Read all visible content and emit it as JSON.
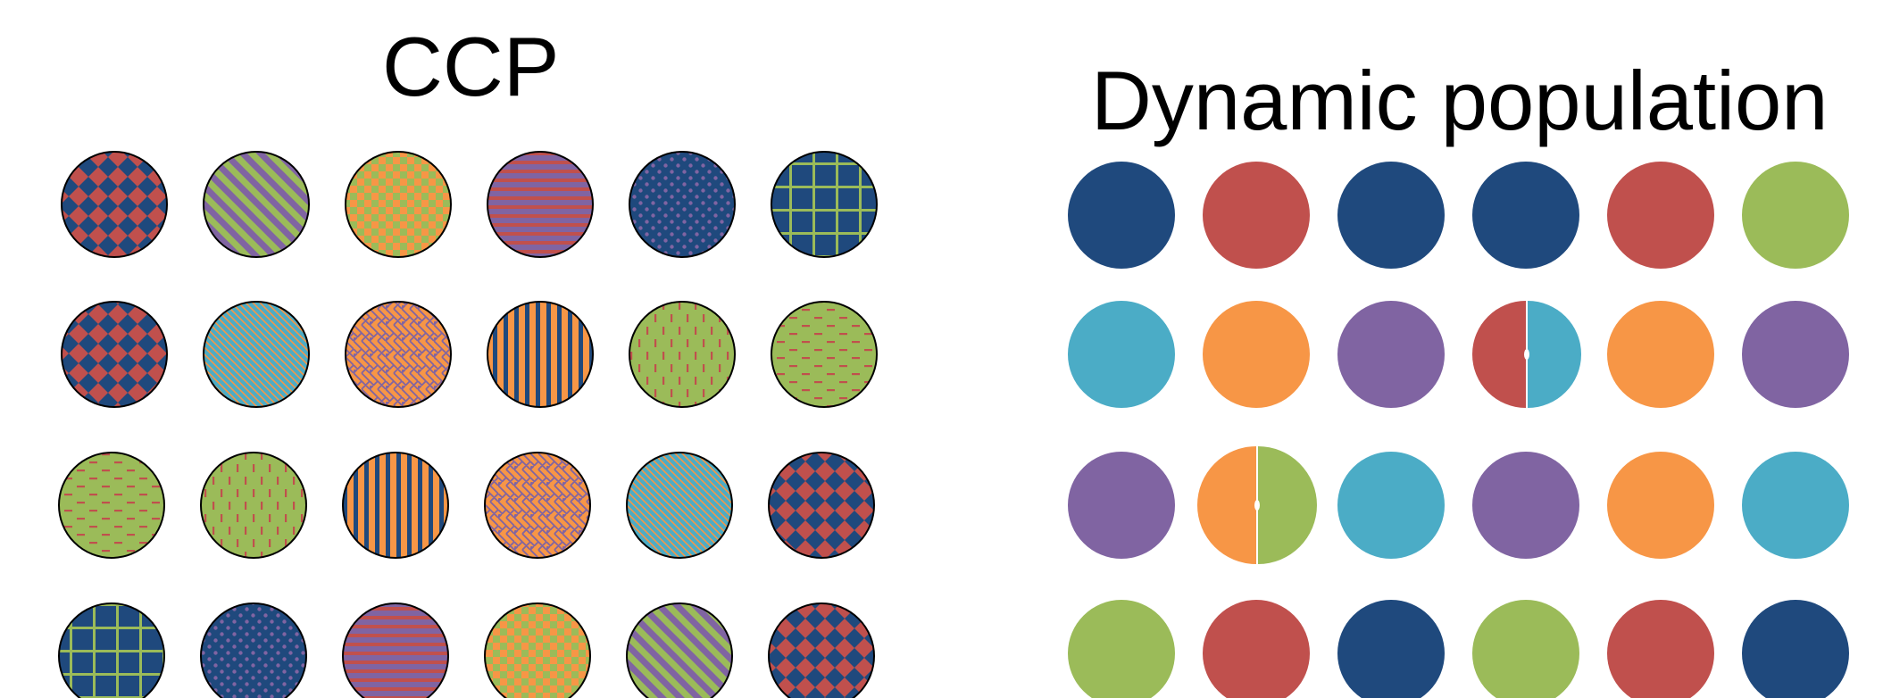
{
  "left_panel": {
    "title": "CCP",
    "patterns": {
      "diamond": {
        "bg": "#C0504D",
        "fg": "#1F497D"
      },
      "diag_purple": {
        "bg": "#9BBB59",
        "fg": "#8064A2"
      },
      "checker": {
        "bg": "#F79646",
        "fg": "#9BBB59"
      },
      "horiz_lines": {
        "bg": "#8064A2",
        "fg": "#C0504D"
      },
      "dots": {
        "bg": "#1F497D",
        "fg": "#8064A2"
      },
      "grid": {
        "bg": "#1F497D",
        "fg": "#9BBB59"
      },
      "diag_fine": {
        "bg": "#4BACC6",
        "fg": "#F79646"
      },
      "weave": {
        "bg": "#F79646",
        "fg": "#8064A2"
      },
      "vert_stripes": {
        "bg": "#F79646",
        "fg": "#1F497D"
      },
      "vert_dashes": {
        "bg": "#9BBB59",
        "fg": "#C0504D"
      },
      "horiz_dashes": {
        "bg": "#9BBB59",
        "fg": "#C0504D"
      }
    },
    "rows": [
      [
        "diamond",
        "diag_purple",
        "checker",
        "horiz_lines",
        "dots",
        "grid"
      ],
      [
        "diamond",
        "diag_fine",
        "weave",
        "vert_stripes",
        "vert_dashes",
        "horiz_dashes"
      ],
      [
        "horiz_dashes",
        "vert_dashes",
        "vert_stripes",
        "weave",
        "diag_fine",
        "diamond"
      ],
      [
        "grid",
        "dots",
        "horiz_lines",
        "checker",
        "diag_purple",
        "diamond"
      ]
    ]
  },
  "right_panel": {
    "title": "Dynamic population",
    "colors": {
      "navy": "#1F497D",
      "red": "#C0504D",
      "green": "#9BBB59",
      "cyan": "#4BACC6",
      "orange": "#F79646",
      "purple": "#8064A2"
    },
    "rows": [
      [
        [
          "navy"
        ],
        [
          "red"
        ],
        [
          "navy"
        ],
        [
          "navy"
        ],
        [
          "red"
        ],
        [
          "green"
        ]
      ],
      [
        [
          "cyan"
        ],
        [
          "orange"
        ],
        [
          "purple"
        ],
        [
          "red",
          "cyan"
        ],
        [
          "orange"
        ],
        [
          "purple"
        ]
      ],
      [
        [
          "purple"
        ],
        [
          "orange",
          "green"
        ],
        [
          "cyan"
        ],
        [
          "purple"
        ],
        [
          "orange"
        ],
        [
          "cyan"
        ]
      ],
      [
        [
          "green"
        ],
        [
          "red"
        ],
        [
          "navy"
        ],
        [
          "green"
        ],
        [
          "red"
        ],
        [
          "navy"
        ]
      ]
    ]
  }
}
